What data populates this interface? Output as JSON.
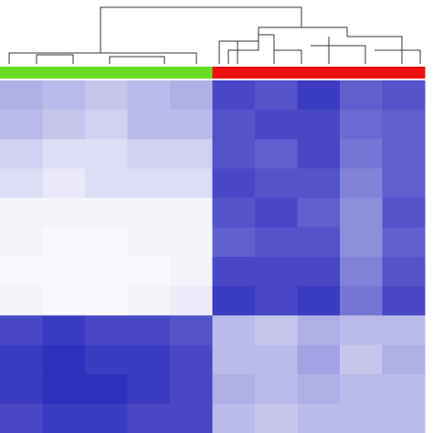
{
  "chart_data": {
    "type": "heatmap",
    "column_colors": [
      "#66dd22",
      "#66dd22",
      "#66dd22",
      "#66dd22",
      "#66dd22",
      "#ee1111",
      "#ee1111",
      "#ee1111",
      "#ee1111",
      "#ee1111"
    ],
    "colors": [
      "#ffffff",
      "#1a1ab8"
    ],
    "vlim": [
      0,
      1
    ],
    "values": [
      [
        0.35,
        0.3,
        0.25,
        0.3,
        0.35,
        0.8,
        0.75,
        0.85,
        0.7,
        0.75
      ],
      [
        0.3,
        0.25,
        0.2,
        0.3,
        0.3,
        0.75,
        0.8,
        0.8,
        0.65,
        0.7
      ],
      [
        0.2,
        0.15,
        0.15,
        0.2,
        0.2,
        0.75,
        0.7,
        0.8,
        0.6,
        0.7
      ],
      [
        0.15,
        0.1,
        0.15,
        0.15,
        0.15,
        0.8,
        0.75,
        0.75,
        0.55,
        0.7
      ],
      [
        0.05,
        0.05,
        0.05,
        0.05,
        0.05,
        0.75,
        0.8,
        0.7,
        0.5,
        0.75
      ],
      [
        0.05,
        0.03,
        0.03,
        0.05,
        0.05,
        0.7,
        0.75,
        0.75,
        0.5,
        0.7
      ],
      [
        0.03,
        0.02,
        0.02,
        0.03,
        0.05,
        0.8,
        0.8,
        0.8,
        0.55,
        0.75
      ],
      [
        0.05,
        0.03,
        0.03,
        0.05,
        0.08,
        0.85,
        0.8,
        0.85,
        0.6,
        0.8
      ],
      [
        0.8,
        0.85,
        0.8,
        0.8,
        0.75,
        0.3,
        0.25,
        0.35,
        0.3,
        0.3
      ],
      [
        0.85,
        0.9,
        0.85,
        0.85,
        0.8,
        0.3,
        0.3,
        0.4,
        0.25,
        0.35
      ],
      [
        0.85,
        0.9,
        0.9,
        0.85,
        0.8,
        0.35,
        0.3,
        0.35,
        0.3,
        0.3
      ],
      [
        0.8,
        0.85,
        0.85,
        0.8,
        0.8,
        0.3,
        0.25,
        0.3,
        0.3,
        0.3
      ]
    ]
  }
}
